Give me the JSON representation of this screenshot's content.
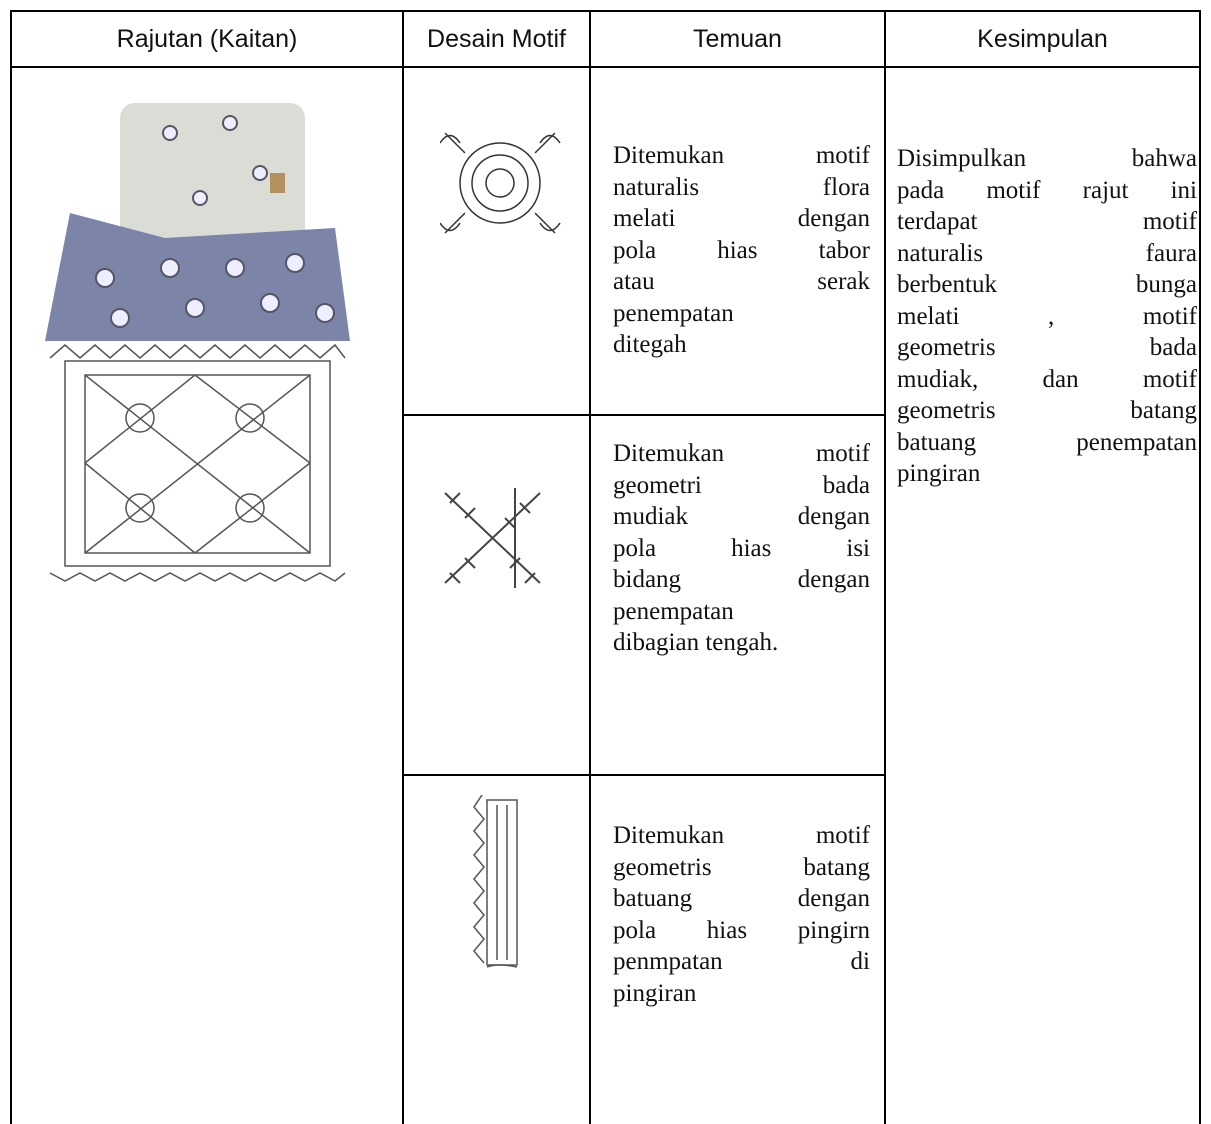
{
  "table": {
    "headers": [
      "Rajutan (Kaitan)",
      "Desain Motif",
      "Temuan",
      "Kesimpulan"
    ],
    "rows": [
      {
        "temuan": [
          "Ditemukan motif",
          "naturalis flora",
          "melati dengan",
          "pola hias tabor",
          "atau serak",
          "penempatan",
          "ditegah"
        ]
      },
      {
        "temuan": [
          "Ditemukan motif",
          "geometri bada",
          "mudiak dengan",
          "pola hias isi",
          "bidang dengan",
          "penempatan",
          "dibagian tengah."
        ]
      },
      {
        "temuan": [
          "Ditemukan motif",
          "geometris batang",
          "batuang dengan",
          "pola hias pingirn",
          "penmpatan di",
          "pingiran"
        ]
      }
    ],
    "kesimpulan": [
      "Disimpulkan bahwa",
      "pada motif rajut ini",
      "terdapat motif",
      "naturalis faura",
      "berbentuk bunga",
      "melati , motif",
      "geometris bada",
      "mudiak, dan motif",
      "geometris batang",
      "batuang penempatan",
      "pingiran"
    ]
  }
}
